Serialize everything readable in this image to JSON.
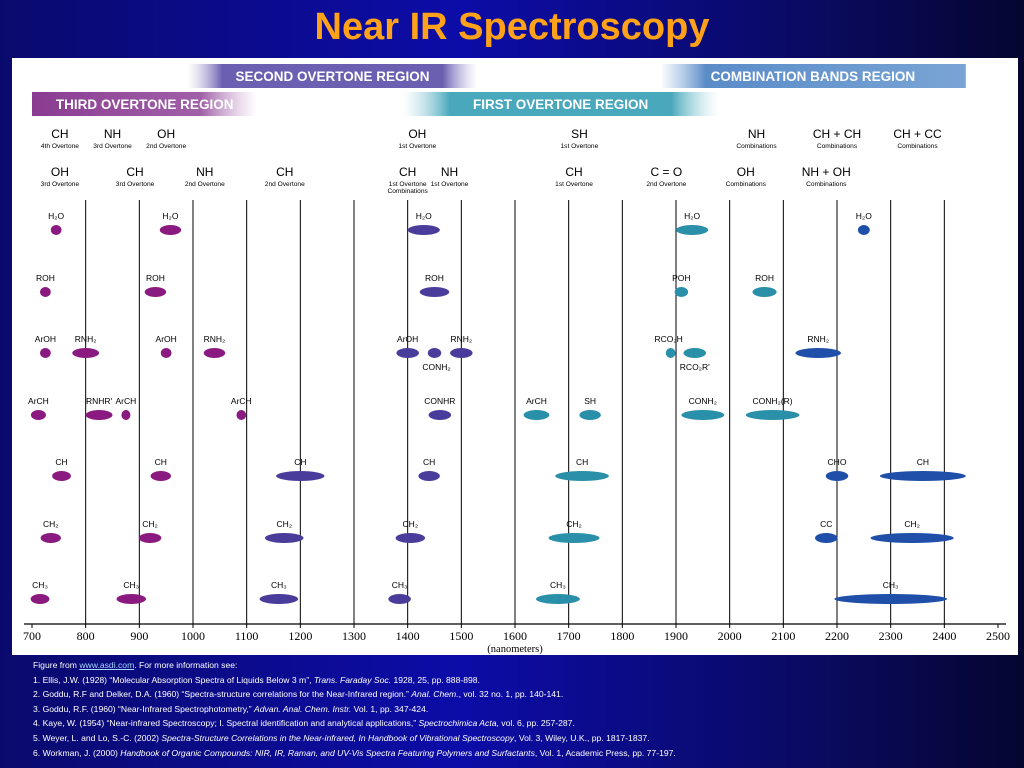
{
  "title": "Near IR Spectroscopy",
  "colors": {
    "title": "#ffa21a",
    "purple": "#8a1a80",
    "indigo": "#4a3c9a",
    "teal": "#2a8fa8",
    "blue": "#1f4fa8"
  },
  "chart_data": {
    "type": "scatter",
    "xlabel": "(nanometers)",
    "xlim": [
      700,
      2500
    ],
    "xticks": [
      700,
      800,
      900,
      1000,
      1100,
      1200,
      1300,
      1400,
      1500,
      1600,
      1700,
      1800,
      1900,
      2000,
      2100,
      2200,
      2300,
      2400,
      2500
    ],
    "tick_labels": [
      "700",
      "800",
      "900",
      "1000",
      "1100",
      "1200",
      "1300",
      "1400",
      "1500",
      "1600",
      "1700",
      "1800",
      "1900",
      "2000",
      "2100",
      "2200",
      "2300",
      "2400",
      "2500"
    ],
    "gridlines": [
      800,
      900,
      1000,
      1100,
      1200,
      1300,
      1400,
      1500,
      1600,
      1700,
      1800,
      1900,
      2000,
      2100,
      2200,
      2300,
      2400
    ],
    "regions": [
      {
        "label": "SECOND OVERTONE REGION",
        "x0": 990,
        "x1": 1530,
        "row": 0,
        "fade": "both"
      },
      {
        "label": "COMBINATION BANDS REGION",
        "x0": 1870,
        "x1": 2440,
        "row": 0,
        "fade": "left"
      },
      {
        "label": "THIRD OVERTONE REGION",
        "x0": 700,
        "x1": 1120,
        "row": 1,
        "fade": "right"
      },
      {
        "label": "FIRST OVERTONE REGION",
        "x0": 1390,
        "x1": 1980,
        "row": 1,
        "fade": "both"
      }
    ],
    "header_row1": [
      {
        "x": 752,
        "name": "CH",
        "sub": "4th Overtone"
      },
      {
        "x": 850,
        "name": "NH",
        "sub": "3rd Overtone"
      },
      {
        "x": 950,
        "name": "OH",
        "sub": "2nd Overtone"
      },
      {
        "x": 1418,
        "name": "OH",
        "sub": "1st Overtone"
      },
      {
        "x": 1720,
        "name": "SH",
        "sub": "1st Overtone"
      },
      {
        "x": 2050,
        "name": "NH",
        "sub": "Combinations"
      },
      {
        "x": 2200,
        "name": "CH + CH",
        "sub": "Combinations"
      },
      {
        "x": 2350,
        "name": "CH + CC",
        "sub": "Combinations"
      }
    ],
    "header_row2": [
      {
        "x": 752,
        "name": "OH",
        "sub": "3rd Overtone"
      },
      {
        "x": 892,
        "name": "CH",
        "sub": "3rd Overtone"
      },
      {
        "x": 1022,
        "name": "NH",
        "sub": "2nd Overtone"
      },
      {
        "x": 1171,
        "name": "CH",
        "sub": "2nd Overtone"
      },
      {
        "x": 1400,
        "name": "CH",
        "sub": "1st Overtone",
        "sub2": "Combinations"
      },
      {
        "x": 1478,
        "name": "NH",
        "sub": "1st Overtone"
      },
      {
        "x": 1710,
        "name": "CH",
        "sub": "1st Overtone"
      },
      {
        "x": 1882,
        "name": "C = O",
        "sub": "2nd Overtone"
      },
      {
        "x": 2030,
        "name": "OH",
        "sub": "Combinations"
      },
      {
        "x": 2180,
        "name": "NH + OH",
        "sub": "Combinations"
      }
    ],
    "bands": [
      {
        "label": "H₂O",
        "row": 0,
        "x": 745,
        "width": 20,
        "color": "purple"
      },
      {
        "label": "H₂O",
        "row": 0,
        "x": 958,
        "width": 40,
        "color": "purple"
      },
      {
        "label": "H₂O",
        "row": 0,
        "x": 1430,
        "width": 60,
        "color": "indigo"
      },
      {
        "label": "H₂O",
        "row": 0,
        "x": 1930,
        "width": 60,
        "color": "teal"
      },
      {
        "label": "H₂O",
        "row": 0,
        "x": 2250,
        "width": 22,
        "color": "blue"
      },
      {
        "label": "ROH",
        "row": 1,
        "x": 725,
        "width": 20,
        "color": "purple"
      },
      {
        "label": "ROH",
        "row": 1,
        "x": 930,
        "width": 40,
        "color": "purple"
      },
      {
        "label": "ROH",
        "row": 1,
        "x": 1450,
        "width": 55,
        "color": "indigo"
      },
      {
        "label": "POH",
        "row": 1,
        "x": 1910,
        "width": 25,
        "color": "teal"
      },
      {
        "label": "ROH",
        "row": 1,
        "x": 2065,
        "width": 45,
        "color": "teal"
      },
      {
        "label": "ArOH",
        "row": 2,
        "x": 725,
        "width": 20,
        "color": "purple"
      },
      {
        "label": "RNH₂",
        "row": 2,
        "x": 800,
        "width": 50,
        "color": "purple"
      },
      {
        "label": "ArOH",
        "row": 2,
        "x": 950,
        "width": 20,
        "color": "purple"
      },
      {
        "label": "RNH₂",
        "row": 2,
        "x": 1040,
        "width": 40,
        "color": "purple"
      },
      {
        "label": "ArOH",
        "row": 2,
        "x": 1400,
        "width": 42,
        "color": "indigo"
      },
      {
        "label": "CONH₂",
        "row": 2,
        "x": 1450,
        "width": 25,
        "color": "indigo",
        "label_pos": "below",
        "label_dx": 2
      },
      {
        "label": "RNH₂",
        "row": 2,
        "x": 1500,
        "width": 42,
        "color": "indigo"
      },
      {
        "label": "RCO₂H",
        "row": 2,
        "x": 1890,
        "width": 18,
        "color": "teal",
        "label_dx": -2
      },
      {
        "label": "RCO₂R'",
        "row": 2,
        "x": 1935,
        "width": 42,
        "color": "teal",
        "label_pos": "below"
      },
      {
        "label": "RNH₂",
        "row": 2,
        "x": 2165,
        "width": 85,
        "color": "blue"
      },
      {
        "label": "ArCH",
        "row": 3,
        "x": 712,
        "width": 28,
        "color": "purple"
      },
      {
        "label": "RNHR'",
        "row": 3,
        "x": 825,
        "width": 50,
        "color": "purple"
      },
      {
        "label": "ArCH",
        "row": 3,
        "x": 875,
        "width": 16,
        "color": "purple"
      },
      {
        "label": "ArCH",
        "row": 3,
        "x": 1090,
        "width": 18,
        "color": "purple"
      },
      {
        "label": "CONHR",
        "row": 3,
        "x": 1460,
        "width": 42,
        "color": "indigo"
      },
      {
        "label": "ArCH",
        "row": 3,
        "x": 1640,
        "width": 48,
        "color": "teal"
      },
      {
        "label": "SH",
        "row": 3,
        "x": 1740,
        "width": 40,
        "color": "teal"
      },
      {
        "label": "CONH₂",
        "row": 3,
        "x": 1950,
        "width": 80,
        "color": "teal"
      },
      {
        "label": "CONH₂(R)",
        "row": 3,
        "x": 2080,
        "width": 100,
        "color": "teal"
      },
      {
        "label": "CH",
        "row": 4,
        "x": 755,
        "width": 35,
        "color": "purple"
      },
      {
        "label": "CH",
        "row": 4,
        "x": 940,
        "width": 38,
        "color": "purple"
      },
      {
        "label": "CH",
        "row": 4,
        "x": 1200,
        "width": 90,
        "color": "indigo"
      },
      {
        "label": "CH",
        "row": 4,
        "x": 1440,
        "width": 40,
        "color": "indigo"
      },
      {
        "label": "CH",
        "row": 4,
        "x": 1725,
        "width": 100,
        "color": "teal"
      },
      {
        "label": "CHO",
        "row": 4,
        "x": 2200,
        "width": 42,
        "color": "blue"
      },
      {
        "label": "CH",
        "row": 4,
        "x": 2360,
        "width": 160,
        "color": "blue"
      },
      {
        "label": "CH₂",
        "row": 5,
        "x": 735,
        "width": 38,
        "color": "purple"
      },
      {
        "label": "CH₂",
        "row": 5,
        "x": 920,
        "width": 42,
        "color": "purple"
      },
      {
        "label": "CH₂",
        "row": 5,
        "x": 1170,
        "width": 72,
        "color": "indigo"
      },
      {
        "label": "CH₂",
        "row": 5,
        "x": 1405,
        "width": 55,
        "color": "indigo"
      },
      {
        "label": "CH₂",
        "row": 5,
        "x": 1710,
        "width": 95,
        "color": "teal"
      },
      {
        "label": "CC",
        "row": 5,
        "x": 2180,
        "width": 42,
        "color": "blue"
      },
      {
        "label": "CH₂",
        "row": 5,
        "x": 2340,
        "width": 155,
        "color": "blue"
      },
      {
        "label": "CH₃",
        "row": 6,
        "x": 715,
        "width": 35,
        "color": "purple"
      },
      {
        "label": "CH₃",
        "row": 6,
        "x": 885,
        "width": 55,
        "color": "purple"
      },
      {
        "label": "CH₃",
        "row": 6,
        "x": 1160,
        "width": 72,
        "color": "indigo"
      },
      {
        "label": "CH₃",
        "row": 6,
        "x": 1385,
        "width": 42,
        "color": "indigo"
      },
      {
        "label": "CH₃",
        "row": 6,
        "x": 1680,
        "width": 82,
        "color": "teal"
      },
      {
        "label": "CH₃",
        "row": 6,
        "x": 2300,
        "width": 210,
        "color": "blue"
      }
    ]
  },
  "references": {
    "intro_prefix": "Figure from ",
    "link": "www.asdi.com",
    "intro_suffix": ".  For more information see:",
    "items": [
      {
        "num": "1.",
        "pre": "Ellis, J.W. (1928) “Molecular Absorption Spectra of Liquids Below 3 m”, ",
        "ital": "Trans. Faraday Soc.",
        "post": " 1928, 25, pp. 888-898."
      },
      {
        "num": "2.",
        "pre": "Goddu, R.F and Delker, D.A. (1960) “Spectra-structure correlations for the Near-Infrared region.” ",
        "ital": "Anal. Chem.",
        "post": ", vol. 32 no. 1, pp. 140-141."
      },
      {
        "num": "3.",
        "pre": "Goddu, R.F. (1960) “Near-Infrared Spectrophotometry,” ",
        "ital": "Advan. Anal. Chem. Instr.",
        "post": " Vol. 1, pp. 347-424."
      },
      {
        "num": "4.",
        "pre": "Kaye, W. (1954) “Near-infrared Spectroscopy; I. Spectral identification and analytical applications,” ",
        "ital": "Spectrochimica Acta,",
        "post": " vol. 6, pp. 257-287."
      },
      {
        "num": "5.",
        "pre": "Weyer, L. and Lo, S.-C. (2002) ",
        "ital": "Spectra-Structure Correlations in the Near-infrared, In Handbook of Vibrational Spectroscopy",
        "post": ", Vol. 3, Wiley, U.K., pp. 1817-1837."
      },
      {
        "num": "6.",
        "pre": "Workman, J. (2000) ",
        "ital": "Handbook of Organic Compounds: NIR, IR, Raman, and UV-Vis Spectra Featuring Polymers and Surfactants",
        "post": ", Vol. 1, Academic Press, pp. 77-197."
      }
    ]
  }
}
